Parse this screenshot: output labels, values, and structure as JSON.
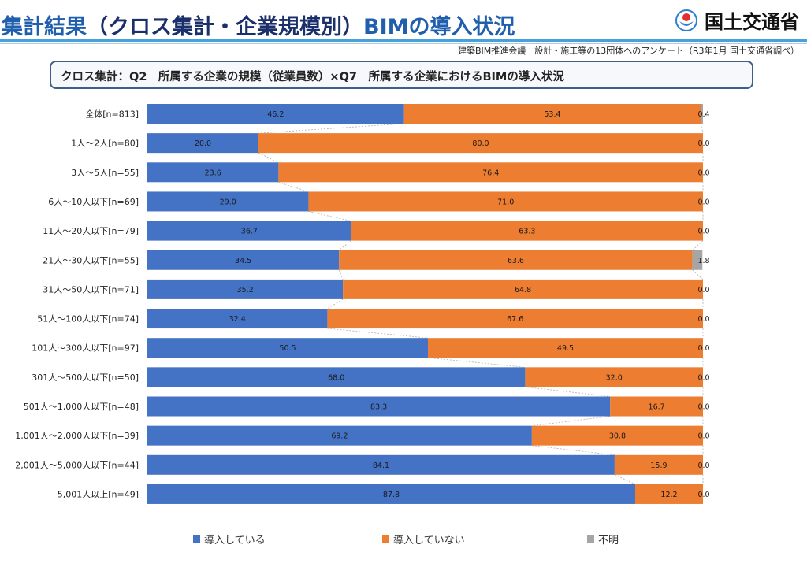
{
  "header": {
    "title_main": "集計結果",
    "title_paren": "（クロス集計・企業規模別）",
    "title_tail": "BIMの導入状況",
    "ministry": "国土交通省",
    "source": "建築BIM推進会議　設計・施工等の13団体へのアンケート（R3年1月 国土交通省調べ）"
  },
  "subtitle": "クロス集計：Q2　所属する企業の規模（従業員数）×Q7　所属する企業におけるBIMの導入状況",
  "colors": {
    "adopted": "#4472c4",
    "not_adopted": "#ed7d31",
    "unknown": "#a5a5a5",
    "title_blue": "#1f5fae"
  },
  "chart_data": {
    "type": "bar",
    "orientation": "horizontal",
    "stacked": true,
    "title": "",
    "xlabel": "",
    "ylabel": "",
    "xlim": [
      0,
      100
    ],
    "legend_position": "bottom",
    "categories": [
      "全体[n=813]",
      "1人～2人[n=80]",
      "3人～5人[n=55]",
      "6人～10人以下[n=69]",
      "11人～20人以下[n=79]",
      "21人～30人以下[n=55]",
      "31人～50人以下[n=71]",
      "51人～100人以下[n=74]",
      "101人～300人以下[n=97]",
      "301人～500人以下[n=50]",
      "501人～1,000人以下[n=48]",
      "1,001人～2,000人以下[n=39]",
      "2,001人～5,000人以下[n=44]",
      "5,001人以上[n=49]"
    ],
    "series": [
      {
        "name": "導入している",
        "color": "#4472c4",
        "values": [
          46.2,
          20.0,
          23.6,
          29.0,
          36.7,
          34.5,
          35.2,
          32.4,
          50.5,
          68.0,
          83.3,
          69.2,
          84.1,
          87.8
        ]
      },
      {
        "name": "導入していない",
        "color": "#ed7d31",
        "values": [
          53.4,
          80.0,
          76.4,
          71.0,
          63.3,
          63.6,
          64.8,
          67.6,
          49.5,
          32.0,
          16.7,
          30.8,
          15.9,
          12.2
        ]
      },
      {
        "name": "不明",
        "color": "#a5a5a5",
        "values": [
          0.4,
          0.0,
          0.0,
          0.0,
          0.0,
          1.8,
          0.0,
          0.0,
          0.0,
          0.0,
          0.0,
          0.0,
          0.0,
          0.0
        ]
      }
    ]
  }
}
